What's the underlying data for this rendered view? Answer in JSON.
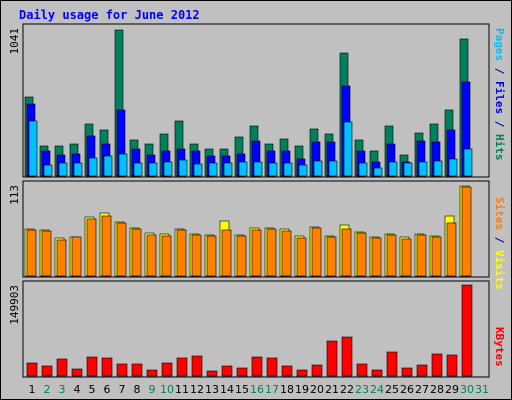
{
  "chart_data": {
    "type": "bar",
    "title": "Daily usage for June 2012",
    "days": [
      "1",
      "2",
      "3",
      "4",
      "5",
      "6",
      "7",
      "8",
      "9",
      "10",
      "11",
      "12",
      "13",
      "14",
      "15",
      "16",
      "17",
      "18",
      "19",
      "20",
      "21",
      "22",
      "23",
      "24",
      "25",
      "26",
      "27",
      "28",
      "29",
      "30",
      "31"
    ],
    "weekend_days": [
      "2",
      "3",
      "9",
      "10",
      "16",
      "17",
      "23",
      "24",
      "30",
      "31"
    ],
    "panels": [
      {
        "id": "hits-files-pages",
        "ymax_label": "1041",
        "ymax": 1041,
        "legend": [
          {
            "text": "Pages",
            "color": "#00c0ff"
          },
          {
            "text": " / ",
            "color": "#000080"
          },
          {
            "text": "Files",
            "color": "#0000ff"
          },
          {
            "text": " / ",
            "color": "#000080"
          },
          {
            "text": "Hits",
            "color": "#00805c"
          }
        ],
        "series": [
          {
            "name": "Hits",
            "color": "#00805c",
            "values": [
              566,
              216,
              216,
              230,
              369,
              328,
              1041,
              258,
              230,
              300,
              390,
              230,
              195,
              195,
              280,
              355,
              230,
              265,
              216,
              336,
              300,
              880,
              258,
              175,
              355,
              150,
              308,
              370,
              470,
              975,
              0
            ]
          },
          {
            "name": "Files",
            "color": "#0000ff",
            "values": [
              510,
              175,
              150,
              160,
              285,
              230,
              470,
              195,
              150,
              175,
              195,
              175,
              140,
              140,
              160,
              250,
              180,
              175,
              120,
              240,
              240,
              640,
              175,
              100,
              225,
              100,
              250,
              245,
              330,
              670,
              0
            ]
          },
          {
            "name": "Pages",
            "color": "#00c0ff",
            "values": [
              390,
              80,
              95,
              90,
              130,
              140,
              160,
              90,
              90,
              100,
              115,
              85,
              95,
              95,
              100,
              100,
              95,
              90,
              75,
              110,
              110,
              385,
              95,
              55,
              100,
              95,
              100,
              105,
              120,
              190,
              0
            ]
          }
        ]
      },
      {
        "id": "visits-sites",
        "ymax_label": "113",
        "ymax": 113,
        "legend": [
          {
            "text": "Sites",
            "color": "#ff8000"
          },
          {
            "text": " / ",
            "color": "#000080"
          },
          {
            "text": "Visits",
            "color": "#ffff00"
          }
        ],
        "series": [
          {
            "name": "Visits",
            "color": "#ffff00",
            "values": [
              58,
              57,
              47,
              49,
              73,
              78,
              67,
              59,
              53,
              52,
              58,
              52,
              51,
              68,
              51,
              59,
              60,
              58,
              50,
              61,
              50,
              63,
              55,
              48,
              52,
              48,
              52,
              50,
              75,
              112,
              0
            ]
          },
          {
            "name": "Sites",
            "color": "#ff8000",
            "values": [
              57,
              56,
              45,
              48,
              71,
              74,
              66,
              58,
              51,
              50,
              57,
              51,
              50,
              57,
              50,
              57,
              58,
              56,
              47,
              60,
              49,
              58,
              54,
              47,
              51,
              46,
              51,
              49,
              66,
              111,
              0
            ]
          }
        ]
      },
      {
        "id": "kbytes",
        "ymax_label": "149903",
        "ymax": 149903,
        "legend": [
          {
            "text": "KBytes",
            "color": "#ff0000"
          }
        ],
        "series": [
          {
            "name": "KBytes",
            "color": "#ff0000",
            "values": [
              21000,
              16000,
              28000,
              12000,
              31000,
              29000,
              20000,
              19000,
              10000,
              22000,
              30000,
              33000,
              9000,
              17000,
              14000,
              32000,
              29000,
              16000,
              10000,
              18000,
              57000,
              64000,
              19000,
              10000,
              40000,
              14000,
              18000,
              37000,
              35000,
              149903,
              0
            ]
          }
        ]
      }
    ]
  }
}
